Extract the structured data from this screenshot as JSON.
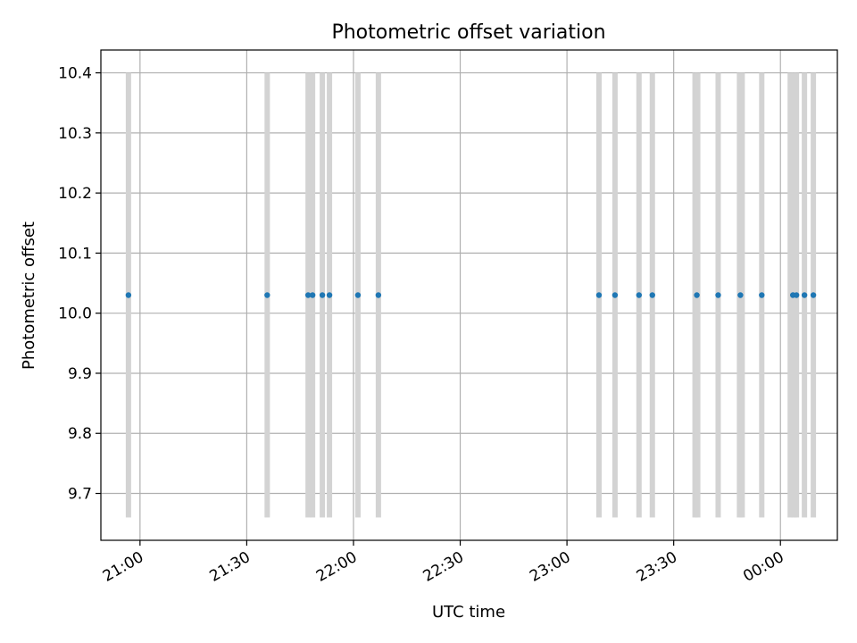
{
  "chart_data": {
    "type": "scatter",
    "title": "Photometric offset variation",
    "xlabel": "UTC time",
    "ylabel": "Photometric offset",
    "xlim": [
      "2000-01-01T20:49:00",
      "2000-01-02T00:16:00"
    ],
    "ylim": [
      9.622,
      10.438
    ],
    "grid": true,
    "x_ticks": [
      {
        "t": "2000-01-01T21:00:00",
        "label": "21:00"
      },
      {
        "t": "2000-01-01T21:30:00",
        "label": "21:30"
      },
      {
        "t": "2000-01-01T22:00:00",
        "label": "22:00"
      },
      {
        "t": "2000-01-01T22:30:00",
        "label": "22:30"
      },
      {
        "t": "2000-01-01T23:00:00",
        "label": "23:00"
      },
      {
        "t": "2000-01-01T23:30:00",
        "label": "23:30"
      },
      {
        "t": "2000-01-02T00:00:00",
        "label": "00:00"
      }
    ],
    "y_ticks": [
      {
        "v": 9.7,
        "label": "9.7"
      },
      {
        "v": 9.8,
        "label": "9.8"
      },
      {
        "v": 9.9,
        "label": "9.9"
      },
      {
        "v": 10.0,
        "label": "10.0"
      },
      {
        "v": 10.1,
        "label": "10.1"
      },
      {
        "v": 10.2,
        "label": "10.2"
      },
      {
        "v": 10.3,
        "label": "10.3"
      },
      {
        "v": 10.4,
        "label": "10.4"
      }
    ],
    "marker_color": "#1f77b4",
    "bar_color": "#d3d3d3",
    "bar_range": [
      9.66,
      10.4
    ],
    "points": [
      {
        "x": "2000-01-01T20:56:45",
        "y": 10.03
      },
      {
        "x": "2000-01-01T21:35:45",
        "y": 10.03
      },
      {
        "x": "2000-01-01T21:47:15",
        "y": 10.03
      },
      {
        "x": "2000-01-01T21:48:30",
        "y": 10.03
      },
      {
        "x": "2000-01-01T21:51:15",
        "y": 10.03
      },
      {
        "x": "2000-01-01T21:53:15",
        "y": 10.03
      },
      {
        "x": "2000-01-01T22:01:15",
        "y": 10.03
      },
      {
        "x": "2000-01-01T22:07:00",
        "y": 10.03
      },
      {
        "x": "2000-01-01T23:09:00",
        "y": 10.03
      },
      {
        "x": "2000-01-01T23:13:30",
        "y": 10.03
      },
      {
        "x": "2000-01-01T23:20:15",
        "y": 10.03
      },
      {
        "x": "2000-01-01T23:24:00",
        "y": 10.03
      },
      {
        "x": "2000-01-01T23:36:30",
        "y": 10.03
      },
      {
        "x": "2000-01-01T23:42:30",
        "y": 10.03
      },
      {
        "x": "2000-01-01T23:48:45",
        "y": 10.03
      },
      {
        "x": "2000-01-01T23:54:45",
        "y": 10.03
      },
      {
        "x": "2000-01-02T00:03:30",
        "y": 10.03
      },
      {
        "x": "2000-01-02T00:04:30",
        "y": 10.03
      },
      {
        "x": "2000-01-02T00:06:45",
        "y": 10.03
      },
      {
        "x": "2000-01-02T00:09:15",
        "y": 10.03
      }
    ],
    "bars": [
      "2000-01-01T20:56:45",
      "2000-01-01T21:35:45",
      "2000-01-01T21:47:15",
      "2000-01-01T21:48:30",
      "2000-01-01T21:51:15",
      "2000-01-01T21:53:15",
      "2000-01-01T22:01:15",
      "2000-01-01T22:07:00",
      "2000-01-01T23:09:00",
      "2000-01-01T23:13:30",
      "2000-01-01T23:20:15",
      "2000-01-01T23:24:00",
      "2000-01-01T23:36:00",
      "2000-01-01T23:36:45",
      "2000-01-01T23:42:30",
      "2000-01-01T23:48:30",
      "2000-01-01T23:49:15",
      "2000-01-01T23:54:45",
      "2000-01-02T00:02:45",
      "2000-01-02T00:03:45",
      "2000-01-02T00:04:30",
      "2000-01-02T00:06:45",
      "2000-01-02T00:09:15"
    ]
  }
}
